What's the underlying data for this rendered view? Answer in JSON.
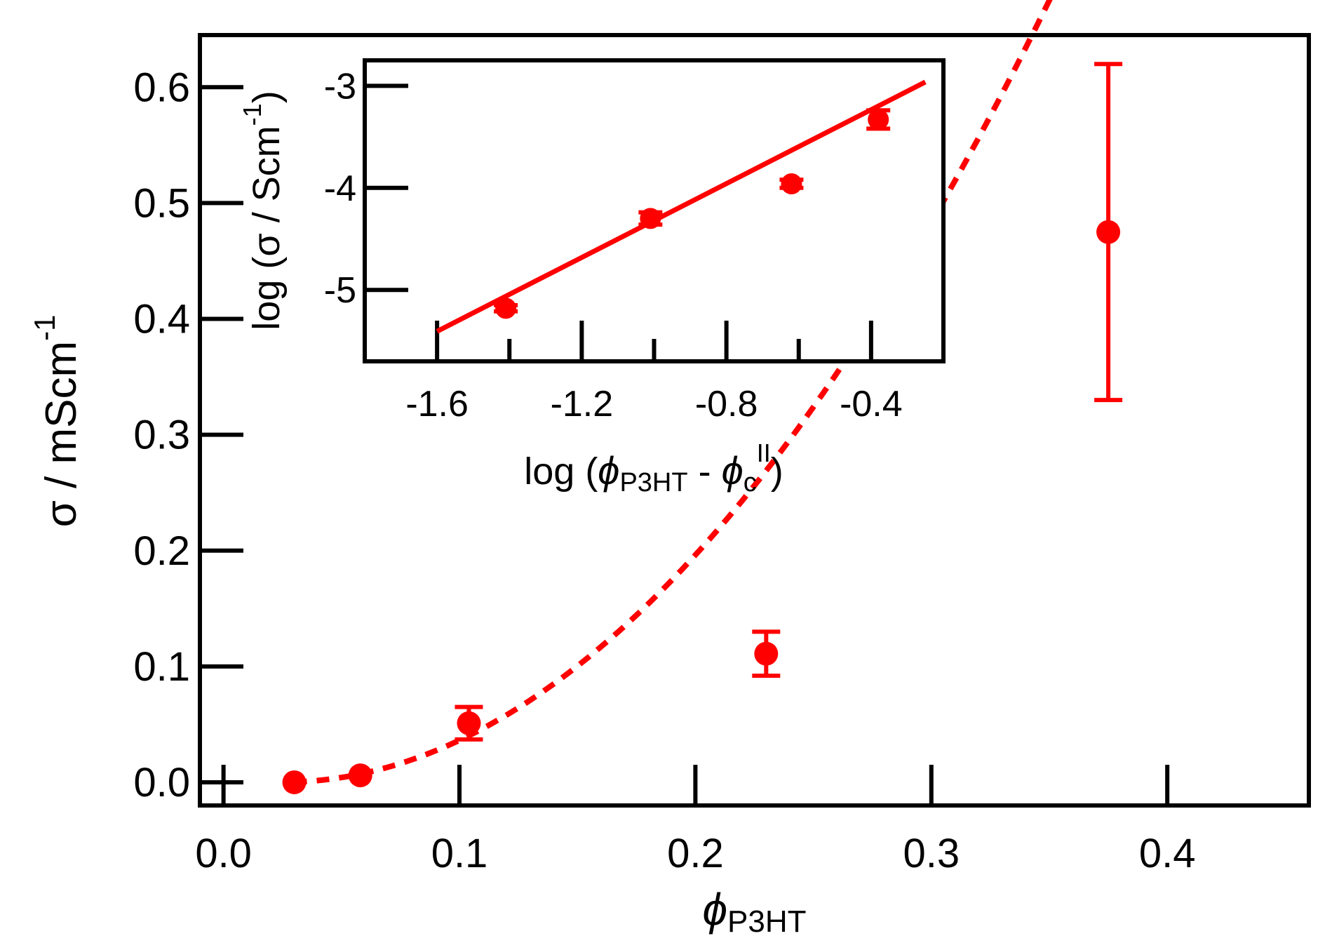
{
  "chart_data": [
    {
      "id": "main",
      "type": "scatter",
      "xlabel": {
        "symbol": "ϕ",
        "sub": "P3HT"
      },
      "ylabel": {
        "main": "σ / mScm",
        "sup": "-1"
      },
      "xlim": [
        -0.01,
        0.46
      ],
      "ylim": [
        -0.02,
        0.645
      ],
      "xticks": [
        0.0,
        0.1,
        0.2,
        0.3,
        0.4
      ],
      "xtick_labels": [
        "0.0",
        "0.1",
        "0.2",
        "0.3",
        "0.4"
      ],
      "yticks": [
        0.0,
        0.1,
        0.2,
        0.3,
        0.4,
        0.5,
        0.6
      ],
      "ytick_labels": [
        "0.0",
        "0.1",
        "0.2",
        "0.3",
        "0.4",
        "0.5",
        "0.6"
      ],
      "grid": false,
      "color": "#ff0000",
      "points": [
        {
          "x": 0.03,
          "y": 0.0,
          "err": 0.0
        },
        {
          "x": 0.058,
          "y": 0.006,
          "err": 0.0
        },
        {
          "x": 0.104,
          "y": 0.051,
          "err": 0.014
        },
        {
          "x": 0.23,
          "y": 0.111,
          "err": 0.019
        },
        {
          "x": 0.375,
          "y": 0.475,
          "err": 0.145
        }
      ],
      "fit": {
        "style": "dashed",
        "x_start": 0.03,
        "x_end": 0.375,
        "curve": "power",
        "phi_c": 0.0245,
        "coef": 6.37,
        "exponent": 2.0
      }
    },
    {
      "id": "inset",
      "type": "scatter",
      "xlabel": {
        "prefix": "log (",
        "symbol": "ϕ",
        "sub": "P3HT",
        "middle": " - ",
        "symbol2": "ϕ",
        "sub2": "c",
        "sup2": "II",
        "suffix": ")"
      },
      "ylabel": {
        "main": "log (σ / Scm",
        "sup": "-1",
        "suffix": ")"
      },
      "xlim": [
        -1.8,
        -0.2
      ],
      "ylim": [
        -5.7,
        -2.75
      ],
      "xticks": [
        -1.6,
        -1.2,
        -0.8,
        -0.4
      ],
      "xtick_labels": [
        "-1.6",
        "-1.2",
        "-0.8",
        "-0.4"
      ],
      "xminor_ticks": [
        -1.4,
        -1.0,
        -0.6
      ],
      "yticks": [
        -3,
        -4,
        -5
      ],
      "ytick_labels": [
        "-3",
        "-4",
        "-5"
      ],
      "grid": false,
      "color": "#ff0000",
      "points": [
        {
          "x": -1.41,
          "y": -5.18,
          "err": 0.03
        },
        {
          "x": -1.01,
          "y": -4.3,
          "err": 0.06
        },
        {
          "x": -0.62,
          "y": -3.96,
          "err": 0.04
        },
        {
          "x": -0.38,
          "y": -3.33,
          "err": 0.09
        }
      ],
      "fit": {
        "style": "solid",
        "x_start": -1.6,
        "x_end": -0.25,
        "slope": 1.81,
        "intercept": -2.51
      }
    }
  ]
}
